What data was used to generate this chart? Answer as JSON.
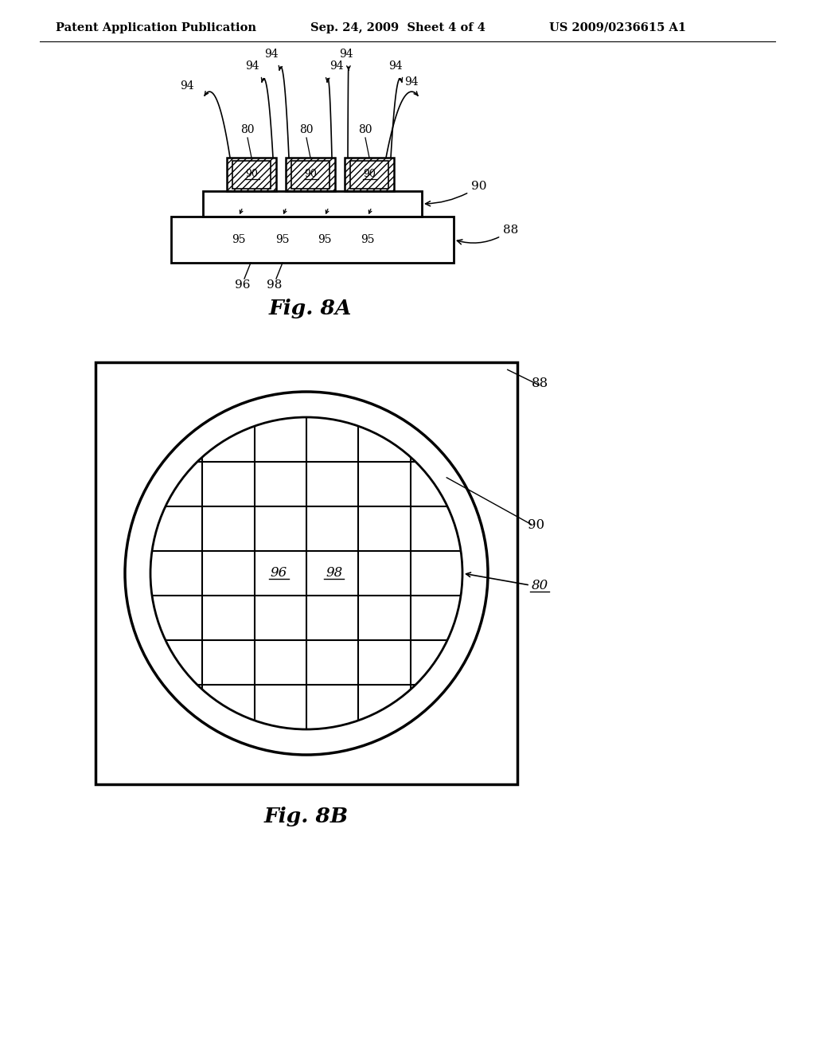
{
  "bg_color": "#ffffff",
  "line_color": "#000000",
  "header_left": "Patent Application Publication",
  "header_mid": "Sep. 24, 2009  Sheet 4 of 4",
  "header_right": "US 2009/0236615 A1",
  "fig8a_label": "Fig. 8A",
  "fig8b_label": "Fig. 8B"
}
